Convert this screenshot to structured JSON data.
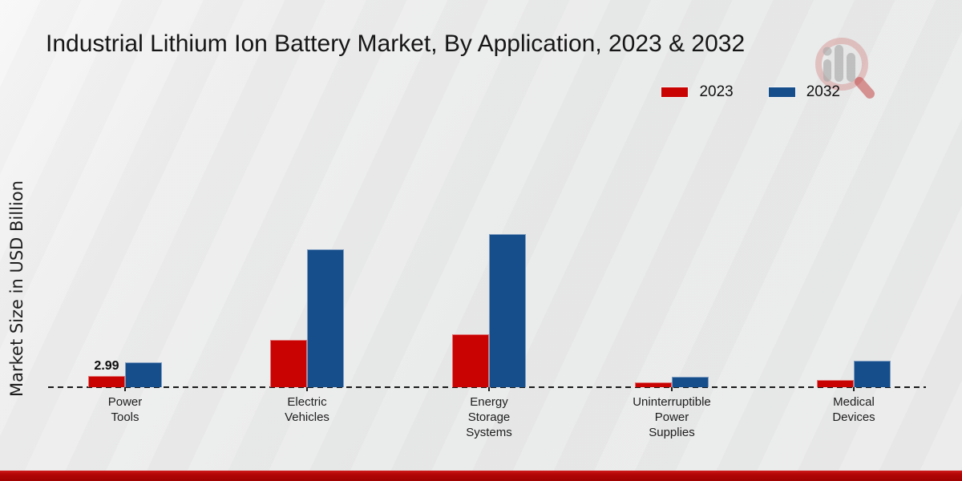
{
  "header": {
    "title": "Industrial Lithium Ion Battery Market, By Application, 2023 & 2032"
  },
  "legend": {
    "items": [
      {
        "label": "2023",
        "color": "#c90202"
      },
      {
        "label": "2032",
        "color": "#164e8c"
      }
    ]
  },
  "y_axis": {
    "label": "Market Size in USD Billion"
  },
  "watermark": {
    "icon": "magnifier-bar-chart-logo"
  },
  "chart_data": {
    "type": "bar",
    "title": "Industrial Lithium Ion Battery Market, By Application, 2023 & 2032",
    "xlabel": "",
    "ylabel": "Market Size in USD Billion",
    "categories": [
      "Power Tools",
      "Electric Vehicles",
      "Energy Storage Systems",
      "Uninterruptible Power Supplies",
      "Medical Devices"
    ],
    "category_label_lines": [
      "Power\nTools",
      "Electric\nVehicles",
      "Energy\nStorage\nSystems",
      "Uninterruptible\nPower\nSupplies",
      "Medical\nDevices"
    ],
    "series": [
      {
        "name": "2023",
        "color": "#c90202",
        "values": [
          2.99,
          12.6,
          14.1,
          1.2,
          1.9
        ]
      },
      {
        "name": "2032",
        "color": "#164e8c",
        "values": [
          6.6,
          36.6,
          40.7,
          2.7,
          7.0
        ]
      }
    ],
    "data_labels": [
      [
        "2.99",
        "",
        "",
        "",
        ""
      ],
      [
        "",
        "",
        "",
        "",
        ""
      ]
    ],
    "ylim": [
      0,
      45
    ],
    "grid": false,
    "baseline_style": "dashed",
    "legend_position": "top-right"
  }
}
